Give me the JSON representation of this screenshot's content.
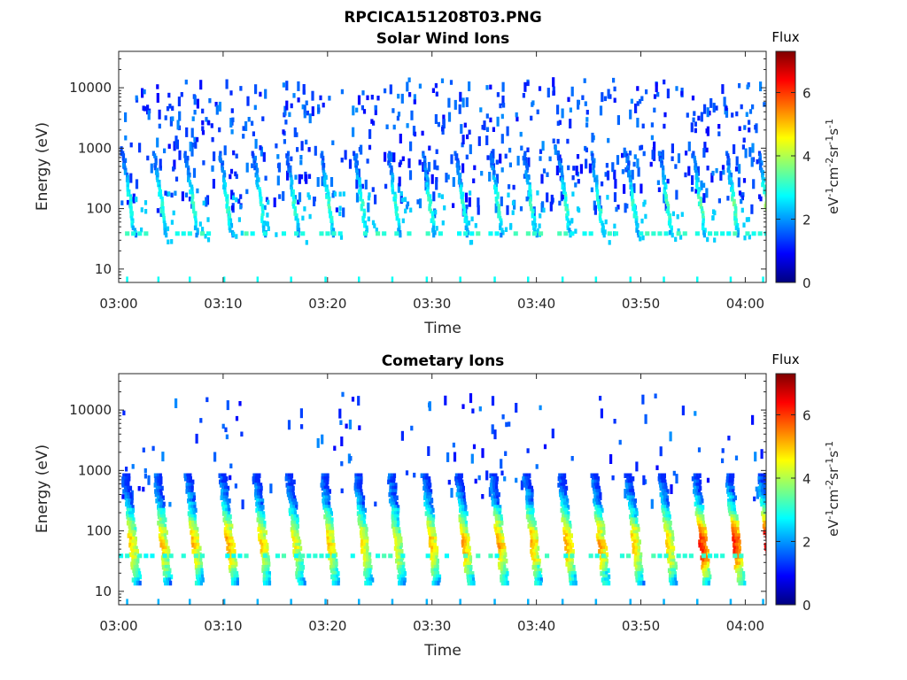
{
  "figure_title": "RPCICA151208T03.PNG",
  "colormap_stops": [
    "#00007f",
    "#0000ff",
    "#007fff",
    "#00ffff",
    "#7fff7f",
    "#ffff00",
    "#ff7f00",
    "#ff0000",
    "#7f0000"
  ],
  "chart_data": [
    {
      "type": "heatmap",
      "title": "Solar Wind Ions",
      "xlabel": "Time",
      "ylabel": "Energy (eV)",
      "x_range": [
        "03:00",
        "04:02"
      ],
      "x_ticks": [
        "03:00",
        "03:10",
        "03:20",
        "03:30",
        "03:40",
        "03:50",
        "04:00"
      ],
      "y_scale": "log",
      "y_range": [
        6,
        40000
      ],
      "y_ticks": [
        "10",
        "100",
        "1000",
        "10000"
      ],
      "colorbar": {
        "label": "Flux",
        "unit": "eV-1cm-2sr-1s-1",
        "range": [
          0,
          7.3
        ],
        "ticks": [
          "0",
          "2",
          "4",
          "6"
        ]
      },
      "sweep_start_minutes": [
        0.3,
        3.3,
        6.3,
        9.6,
        12.8,
        16.0,
        19.3,
        22.5,
        25.7,
        29.0,
        32.2,
        35.5,
        38.7,
        42.0,
        45.2,
        48.5,
        51.7,
        54.9,
        58.1,
        61.2
      ],
      "sweep_peak_flux": [
        3.0,
        3.0,
        3.1,
        3.0,
        3.0,
        3.0,
        3.1,
        3.0,
        3.0,
        3.1,
        3.0,
        3.1,
        3.0,
        3.1,
        3.1,
        3.0,
        3.2,
        3.3,
        3.4,
        3.6
      ],
      "sweep_energy_range_eV": [
        40,
        900
      ],
      "background_energy_range_eV": [
        100,
        15000
      ],
      "background_flux": 1.5
    },
    {
      "type": "heatmap",
      "title": "Cometary Ions",
      "xlabel": "Time",
      "ylabel": "Energy (eV)",
      "x_range": [
        "03:00",
        "04:02"
      ],
      "x_ticks": [
        "03:00",
        "03:10",
        "03:20",
        "03:30",
        "03:40",
        "03:50",
        "04:00"
      ],
      "y_scale": "log",
      "y_range": [
        6,
        40000
      ],
      "y_ticks": [
        "10",
        "100",
        "1000",
        "10000"
      ],
      "colorbar": {
        "label": "Flux",
        "unit": "eV-1cm-2sr-1s-1",
        "range": [
          0,
          7.3
        ],
        "ticks": [
          "0",
          "2",
          "4",
          "6"
        ]
      },
      "sweep_start_minutes": [
        0.3,
        3.3,
        6.3,
        9.6,
        12.8,
        16.0,
        19.3,
        22.5,
        25.7,
        29.0,
        32.2,
        35.5,
        38.7,
        42.0,
        45.2,
        48.5,
        51.7,
        54.9,
        58.1,
        61.2
      ],
      "sweep_peak_flux": [
        4.8,
        4.9,
        5.0,
        5.3,
        4.8,
        4.6,
        4.9,
        4.7,
        4.6,
        5.0,
        5.2,
        5.2,
        5.1,
        5.3,
        5.2,
        5.0,
        5.0,
        6.3,
        6.1,
        6.6
      ],
      "sweep_energy_range_eV": [
        15,
        900
      ],
      "background_energy_range_eV": [
        300,
        20000
      ],
      "background_flux": 1.5
    }
  ]
}
